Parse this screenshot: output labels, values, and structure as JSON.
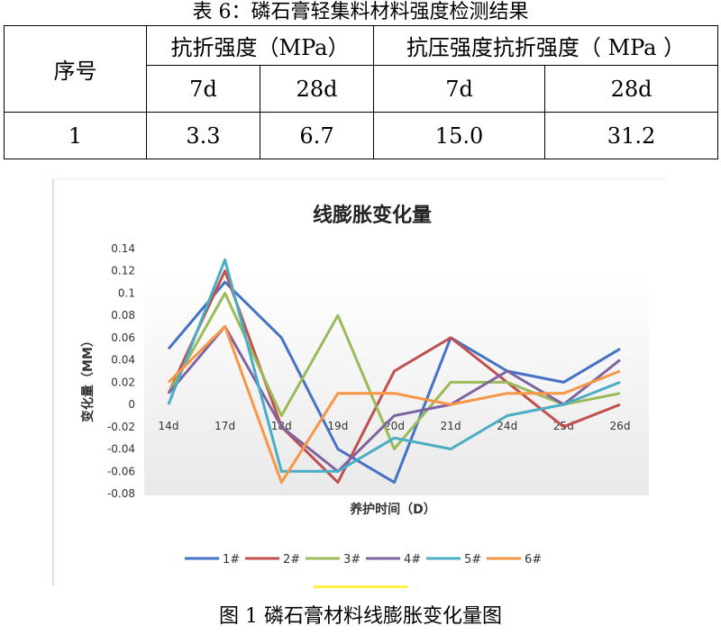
{
  "table": {
    "caption": "表 6：磷石膏轻集料材料强度检测结果",
    "header_no": "序号",
    "header_flex": "抗折强度（MPa）",
    "header_comp": "抗压强度抗折强度（ MPa ）",
    "sub": [
      "7d",
      "28d",
      "7d",
      "28d"
    ],
    "row": [
      "1",
      "3.3",
      "6.7",
      "15.0",
      "31.2"
    ]
  },
  "figure_caption": "图 1 磷石膏材料线膨胀变化量图",
  "chart_data": {
    "type": "line",
    "title": "线膨胀变化量",
    "xlabel": "养护时间（D）",
    "ylabel": "变化量（MM）",
    "categories": [
      "14d",
      "17d",
      "18d",
      "19d",
      "20d",
      "21d",
      "24d",
      "25d",
      "26d"
    ],
    "y_ticks": [
      "0.14",
      "0.12",
      "0.1",
      "0.08",
      "0.06",
      "0.04",
      "0.02",
      "0",
      "-0.02",
      "-0.04",
      "-0.06",
      "-0.08"
    ],
    "ylim": [
      -0.08,
      0.14
    ],
    "grid": false,
    "legend_position": "bottom",
    "series": [
      {
        "name": "1#",
        "color": "#4472c4",
        "values": [
          0.05,
          0.11,
          0.06,
          -0.04,
          -0.07,
          0.06,
          0.03,
          0.02,
          0.05
        ]
      },
      {
        "name": "2#",
        "color": "#c0504d",
        "values": [
          0.01,
          0.12,
          -0.02,
          -0.07,
          0.03,
          0.06,
          0.02,
          -0.02,
          0.0
        ]
      },
      {
        "name": "3#",
        "color": "#9bbb59",
        "values": [
          0.01,
          0.1,
          -0.01,
          0.08,
          -0.04,
          0.02,
          0.02,
          0.0,
          0.01
        ]
      },
      {
        "name": "4#",
        "color": "#8064a2",
        "values": [
          0.01,
          0.07,
          -0.02,
          -0.06,
          -0.01,
          0.0,
          0.03,
          0.0,
          0.04
        ]
      },
      {
        "name": "5#",
        "color": "#4bacc6",
        "values": [
          0.0,
          0.13,
          -0.06,
          -0.06,
          -0.03,
          -0.04,
          -0.01,
          0.0,
          0.02
        ]
      },
      {
        "name": "6#",
        "color": "#f79646",
        "values": [
          0.02,
          0.07,
          -0.07,
          0.01,
          0.01,
          0.0,
          0.01,
          0.01,
          0.03
        ]
      }
    ]
  }
}
